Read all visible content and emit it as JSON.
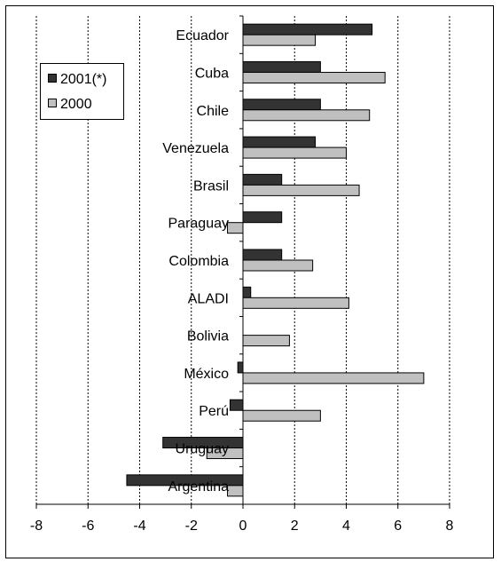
{
  "chart_data": {
    "type": "bar",
    "orientation": "horizontal",
    "categories": [
      "Ecuador",
      "Cuba",
      "Chile",
      "Venezuela",
      "Brasil",
      "Paraguay",
      "Colombia",
      "ALADI",
      "Bolivia",
      "México",
      "Perú",
      "Uruguay",
      "Argentina"
    ],
    "series": [
      {
        "name": "2001(*)",
        "values": [
          5.0,
          3.0,
          3.0,
          2.8,
          1.5,
          1.5,
          1.5,
          0.3,
          0.0,
          -0.2,
          -0.5,
          -3.1,
          -4.5
        ]
      },
      {
        "name": "2000",
        "values": [
          2.8,
          5.5,
          4.9,
          4.0,
          4.5,
          -0.6,
          2.7,
          4.1,
          1.8,
          7.0,
          3.0,
          -1.4,
          -0.6
        ]
      }
    ],
    "xlim": [
      -8,
      8
    ],
    "xticks": [
      "-8",
      "-6",
      "-4",
      "-2",
      "0",
      "2",
      "4",
      "6",
      "8"
    ],
    "grid": "vertical dashed",
    "legend_position": "top-left",
    "colors": {
      "2001(*)": "#333333",
      "2000": "#c0c0c0"
    }
  }
}
